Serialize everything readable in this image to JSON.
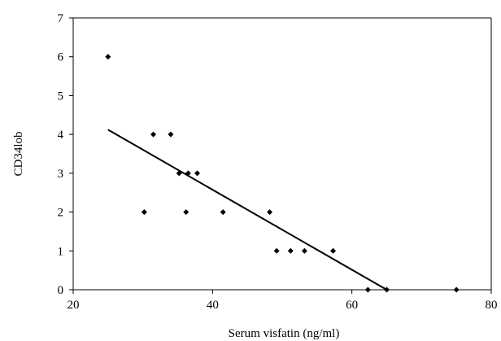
{
  "chart_data": {
    "type": "scatter",
    "title": "",
    "xlabel": "Serum visfatin (ng/ml)",
    "ylabel": "CD34lob",
    "xlim": [
      20,
      80
    ],
    "ylim": [
      0,
      7
    ],
    "xticks": [
      "20",
      "40",
      "60",
      "80"
    ],
    "yticks": [
      "0",
      "1",
      "2",
      "3",
      "4",
      "5",
      "6",
      "7"
    ],
    "grid": false,
    "legend": "none",
    "marker_color": "#000000",
    "series": [
      {
        "points": [
          {
            "x": 25,
            "y": 6
          },
          {
            "x": 31.5,
            "y": 4
          },
          {
            "x": 34,
            "y": 4
          },
          {
            "x": 30.2,
            "y": 2
          },
          {
            "x": 35.2,
            "y": 3
          },
          {
            "x": 36.5,
            "y": 3
          },
          {
            "x": 37.8,
            "y": 3
          },
          {
            "x": 36.2,
            "y": 2
          },
          {
            "x": 41.5,
            "y": 2
          },
          {
            "x": 48.2,
            "y": 2
          },
          {
            "x": 49.2,
            "y": 1
          },
          {
            "x": 51.2,
            "y": 1
          },
          {
            "x": 53.2,
            "y": 1
          },
          {
            "x": 57.3,
            "y": 1
          },
          {
            "x": 62.3,
            "y": 0
          },
          {
            "x": 65,
            "y": 0
          },
          {
            "x": 75,
            "y": 0
          }
        ]
      }
    ],
    "trendline": {
      "x1": 25,
      "y1": 4.12,
      "x2": 65,
      "y2": 0
    }
  }
}
